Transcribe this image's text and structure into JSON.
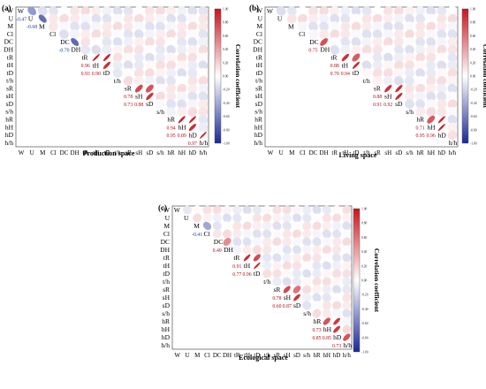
{
  "chart_data": [
    {
      "type": "heatmap",
      "panel_label": "(a)",
      "title": "Production space",
      "variables": [
        "W",
        "U",
        "M",
        "Cl",
        "DC",
        "DH",
        "tR",
        "tH",
        "tD",
        "t/h",
        "sR",
        "sH",
        "sD",
        "s/h",
        "hR",
        "hH",
        "hD",
        "h/h"
      ],
      "cell_values": [
        {
          "row": "U",
          "col": "W",
          "value": -0.47
        },
        {
          "row": "M",
          "col": "U",
          "value": -0.68
        },
        {
          "row": "DH",
          "col": "DC",
          "value": -0.7
        },
        {
          "row": "tH",
          "col": "tR",
          "value": 0.96
        },
        {
          "row": "tD",
          "col": "tR",
          "value": 0.93
        },
        {
          "row": "tD",
          "col": "tH",
          "value": 0.9
        },
        {
          "row": "sH",
          "col": "sR",
          "value": 0.78
        },
        {
          "row": "sD",
          "col": "sR",
          "value": 0.73
        },
        {
          "row": "sD",
          "col": "sH",
          "value": 0.88
        },
        {
          "row": "hH",
          "col": "hR",
          "value": 0.94
        },
        {
          "row": "hD",
          "col": "hR",
          "value": 0.95
        },
        {
          "row": "hD",
          "col": "hH",
          "value": 0.89
        },
        {
          "row": "h/h",
          "col": "hD",
          "value": 0.97
        }
      ],
      "colorbar": {
        "label": "Correlation coefficient",
        "ticks": [
          "1.00",
          "0.80",
          "0.60",
          "0.40",
          "0.20",
          "0.00",
          "-0.20",
          "-0.40",
          "-0.60",
          "-0.80",
          "-1.00"
        ],
        "range": [
          -1,
          1
        ]
      }
    },
    {
      "type": "heatmap",
      "panel_label": "(b)",
      "title": "Living space",
      "variables": [
        "W",
        "U",
        "M",
        "Cl",
        "DC",
        "DH",
        "tR",
        "tH",
        "tD",
        "t/h",
        "sR",
        "sH",
        "sD",
        "s/h",
        "hR",
        "hH",
        "hD",
        "h/h"
      ],
      "cell_values": [
        {
          "row": "DH",
          "col": "DC",
          "value": 0.75
        },
        {
          "row": "tH",
          "col": "tR",
          "value": 0.88
        },
        {
          "row": "tD",
          "col": "tR",
          "value": 0.7
        },
        {
          "row": "tD",
          "col": "tH",
          "value": 0.94
        },
        {
          "row": "sH",
          "col": "sR",
          "value": 0.88
        },
        {
          "row": "sD",
          "col": "sR",
          "value": 0.91
        },
        {
          "row": "sD",
          "col": "sH",
          "value": 0.92
        },
        {
          "row": "hH",
          "col": "hR",
          "value": 0.71
        },
        {
          "row": "hD",
          "col": "hR",
          "value": 0.95
        },
        {
          "row": "hD",
          "col": "hH",
          "value": 0.96
        }
      ],
      "colorbar": {
        "label": "Correlation coefficient",
        "ticks": [
          "1.00",
          "0.80",
          "0.60",
          "0.40",
          "0.20",
          "0.00",
          "-0.20",
          "-0.40",
          "-0.60",
          "-0.80",
          "-1.00"
        ],
        "range": [
          -1,
          1
        ]
      }
    },
    {
      "type": "heatmap",
      "panel_label": "(c)",
      "title": "Ecological space",
      "variables": [
        "W",
        "U",
        "M",
        "Cl",
        "DC",
        "DH",
        "tR",
        "tH",
        "tD",
        "t/h",
        "sR",
        "sH",
        "sD",
        "s/h",
        "hR",
        "hH",
        "hD",
        "h/h"
      ],
      "cell_values": [
        {
          "row": "Cl",
          "col": "M",
          "value": -0.41
        },
        {
          "row": "DH",
          "col": "DC",
          "value": 0.49
        },
        {
          "row": "tH",
          "col": "tR",
          "value": 0.91
        },
        {
          "row": "tD",
          "col": "tR",
          "value": 0.77
        },
        {
          "row": "tD",
          "col": "tH",
          "value": 0.96
        },
        {
          "row": "sH",
          "col": "sR",
          "value": 0.78
        },
        {
          "row": "sD",
          "col": "sR",
          "value": 0.6
        },
        {
          "row": "sD",
          "col": "sH",
          "value": 0.87
        },
        {
          "row": "hH",
          "col": "hR",
          "value": 0.73
        },
        {
          "row": "hD",
          "col": "hR",
          "value": 0.85
        },
        {
          "row": "hD",
          "col": "hH",
          "value": 0.85
        },
        {
          "row": "h/h",
          "col": "hD",
          "value": 0.73
        }
      ],
      "colorbar": {
        "label": "Correlation coefficient",
        "ticks": [
          "1.00",
          "0.80",
          "0.60",
          "0.40",
          "0.20",
          "0.00",
          "-0.20",
          "-0.40",
          "-0.60",
          "-0.80",
          "-1.00"
        ],
        "range": [
          -1,
          1
        ]
      }
    }
  ]
}
